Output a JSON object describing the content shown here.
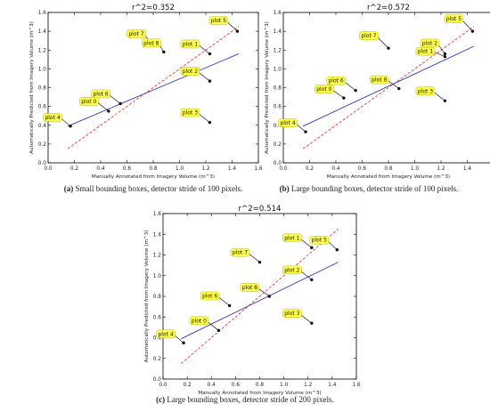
{
  "chart_data": [
    {
      "type": "scatter",
      "caption_tag": "(a)",
      "caption_text": "Small bounding boxes, detector stride of 100 pixels.",
      "title": "r^2=0.352",
      "xlabel": "Manually Annotated from Imagery Volume (m^3)",
      "ylabel": "Automatically Predicted from Imagery Volume (m^3)",
      "xlim": [
        0.0,
        1.6
      ],
      "ylim": [
        0.0,
        1.6
      ],
      "xticks": [
        "0.0",
        "0.2",
        "0.4",
        "0.6",
        "0.8",
        "1.0",
        "1.2",
        "1.4",
        "1.6"
      ],
      "yticks": [
        "0.0",
        "0.2",
        "0.4",
        "0.6",
        "0.8",
        "1.0",
        "1.2",
        "1.4",
        "1.6"
      ],
      "points": [
        {
          "label": "plot 4",
          "x": 0.17,
          "y": 0.39
        },
        {
          "label": "plot 0",
          "x": 0.46,
          "y": 0.55
        },
        {
          "label": "plot 6",
          "x": 0.55,
          "y": 0.63
        },
        {
          "label": "plot 7",
          "x": 0.8,
          "y": 1.25
        },
        {
          "label": "plot 8",
          "x": 0.88,
          "y": 1.18
        },
        {
          "label": "plot 1",
          "x": 1.23,
          "y": 1.16
        },
        {
          "label": "plot 2",
          "x": 1.23,
          "y": 0.87
        },
        {
          "label": "plot 3",
          "x": 1.23,
          "y": 0.43
        },
        {
          "label": "plot 5",
          "x": 1.44,
          "y": 1.4
        }
      ],
      "fit_line": [
        [
          0.15,
          0.39
        ],
        [
          1.45,
          1.16
        ]
      ],
      "identity_line": [
        [
          0.15,
          0.15
        ],
        [
          1.45,
          1.45
        ]
      ],
      "grid": false
    },
    {
      "type": "scatter",
      "caption_tag": "(b)",
      "caption_text": "Large bounding boxes, detector stride of 100 pixels.",
      "title": "r^2=0.572",
      "xlabel": "Manually Annotated from Imagery Volume (m^3)",
      "ylabel": "Automatically Predicted from Imagery Volume (m^3)",
      "xlim": [
        0.0,
        1.6
      ],
      "ylim": [
        0.0,
        1.6
      ],
      "xticks": [
        "0.0",
        "0.2",
        "0.4",
        "0.6",
        "0.8",
        "1.0",
        "1.2",
        "1.4",
        "1.6"
      ],
      "yticks": [
        "0.0",
        "0.2",
        "0.4",
        "0.6",
        "0.8",
        "1.0",
        "1.2",
        "1.4",
        "1.6"
      ],
      "points": [
        {
          "label": "plot 4",
          "x": 0.17,
          "y": 0.33
        },
        {
          "label": "plot 0",
          "x": 0.46,
          "y": 0.69
        },
        {
          "label": "plot 6",
          "x": 0.55,
          "y": 0.77
        },
        {
          "label": "plot 7",
          "x": 0.8,
          "y": 1.22
        },
        {
          "label": "plot 8",
          "x": 0.88,
          "y": 0.79
        },
        {
          "label": "plot 2",
          "x": 1.23,
          "y": 1.16
        },
        {
          "label": "plot 1",
          "x": 1.23,
          "y": 1.13
        },
        {
          "label": "plot 3",
          "x": 1.23,
          "y": 0.66
        },
        {
          "label": "plot 5",
          "x": 1.44,
          "y": 1.4
        }
      ],
      "fit_line": [
        [
          0.15,
          0.39
        ],
        [
          1.45,
          1.24
        ]
      ],
      "identity_line": [
        [
          0.15,
          0.15
        ],
        [
          1.45,
          1.45
        ]
      ],
      "grid": false
    },
    {
      "type": "scatter",
      "caption_tag": "(c)",
      "caption_text": "Large bounding boxes, detector stride of 200 pixels.",
      "title": "r^2=0.514",
      "xlabel": "Manually Annotated from Imagery Volume (m^3)",
      "ylabel": "Automatically Predicted from Imagery Volume (m^3)",
      "xlim": [
        0.0,
        1.6
      ],
      "ylim": [
        0.0,
        1.6
      ],
      "xticks": [
        "0.0",
        "0.2",
        "0.4",
        "0.6",
        "0.8",
        "1.0",
        "1.2",
        "1.4",
        "1.6"
      ],
      "yticks": [
        "0.0",
        "0.2",
        "0.4",
        "0.6",
        "0.8",
        "1.0",
        "1.2",
        "1.4",
        "1.6"
      ],
      "points": [
        {
          "label": "plot 4",
          "x": 0.17,
          "y": 0.35
        },
        {
          "label": "plot 0",
          "x": 0.46,
          "y": 0.47
        },
        {
          "label": "plot 6",
          "x": 0.55,
          "y": 0.71
        },
        {
          "label": "plot 7",
          "x": 0.8,
          "y": 1.13
        },
        {
          "label": "plot 8",
          "x": 0.88,
          "y": 0.8
        },
        {
          "label": "plot 1",
          "x": 1.23,
          "y": 1.27
        },
        {
          "label": "plot 2",
          "x": 1.23,
          "y": 0.96
        },
        {
          "label": "plot 3",
          "x": 1.23,
          "y": 0.54
        },
        {
          "label": "plot 5",
          "x": 1.44,
          "y": 1.25
        }
      ],
      "fit_line": [
        [
          0.15,
          0.39
        ],
        [
          1.45,
          1.13
        ]
      ],
      "identity_line": [
        [
          0.15,
          0.15
        ],
        [
          1.45,
          1.45
        ]
      ],
      "grid": false
    }
  ],
  "style": {
    "fit_color": "#3333cc",
    "identity_color": "#ee3333",
    "label_fill": "#ffff4d",
    "label_stroke": "#b8b800",
    "marker_color": "#111111"
  }
}
